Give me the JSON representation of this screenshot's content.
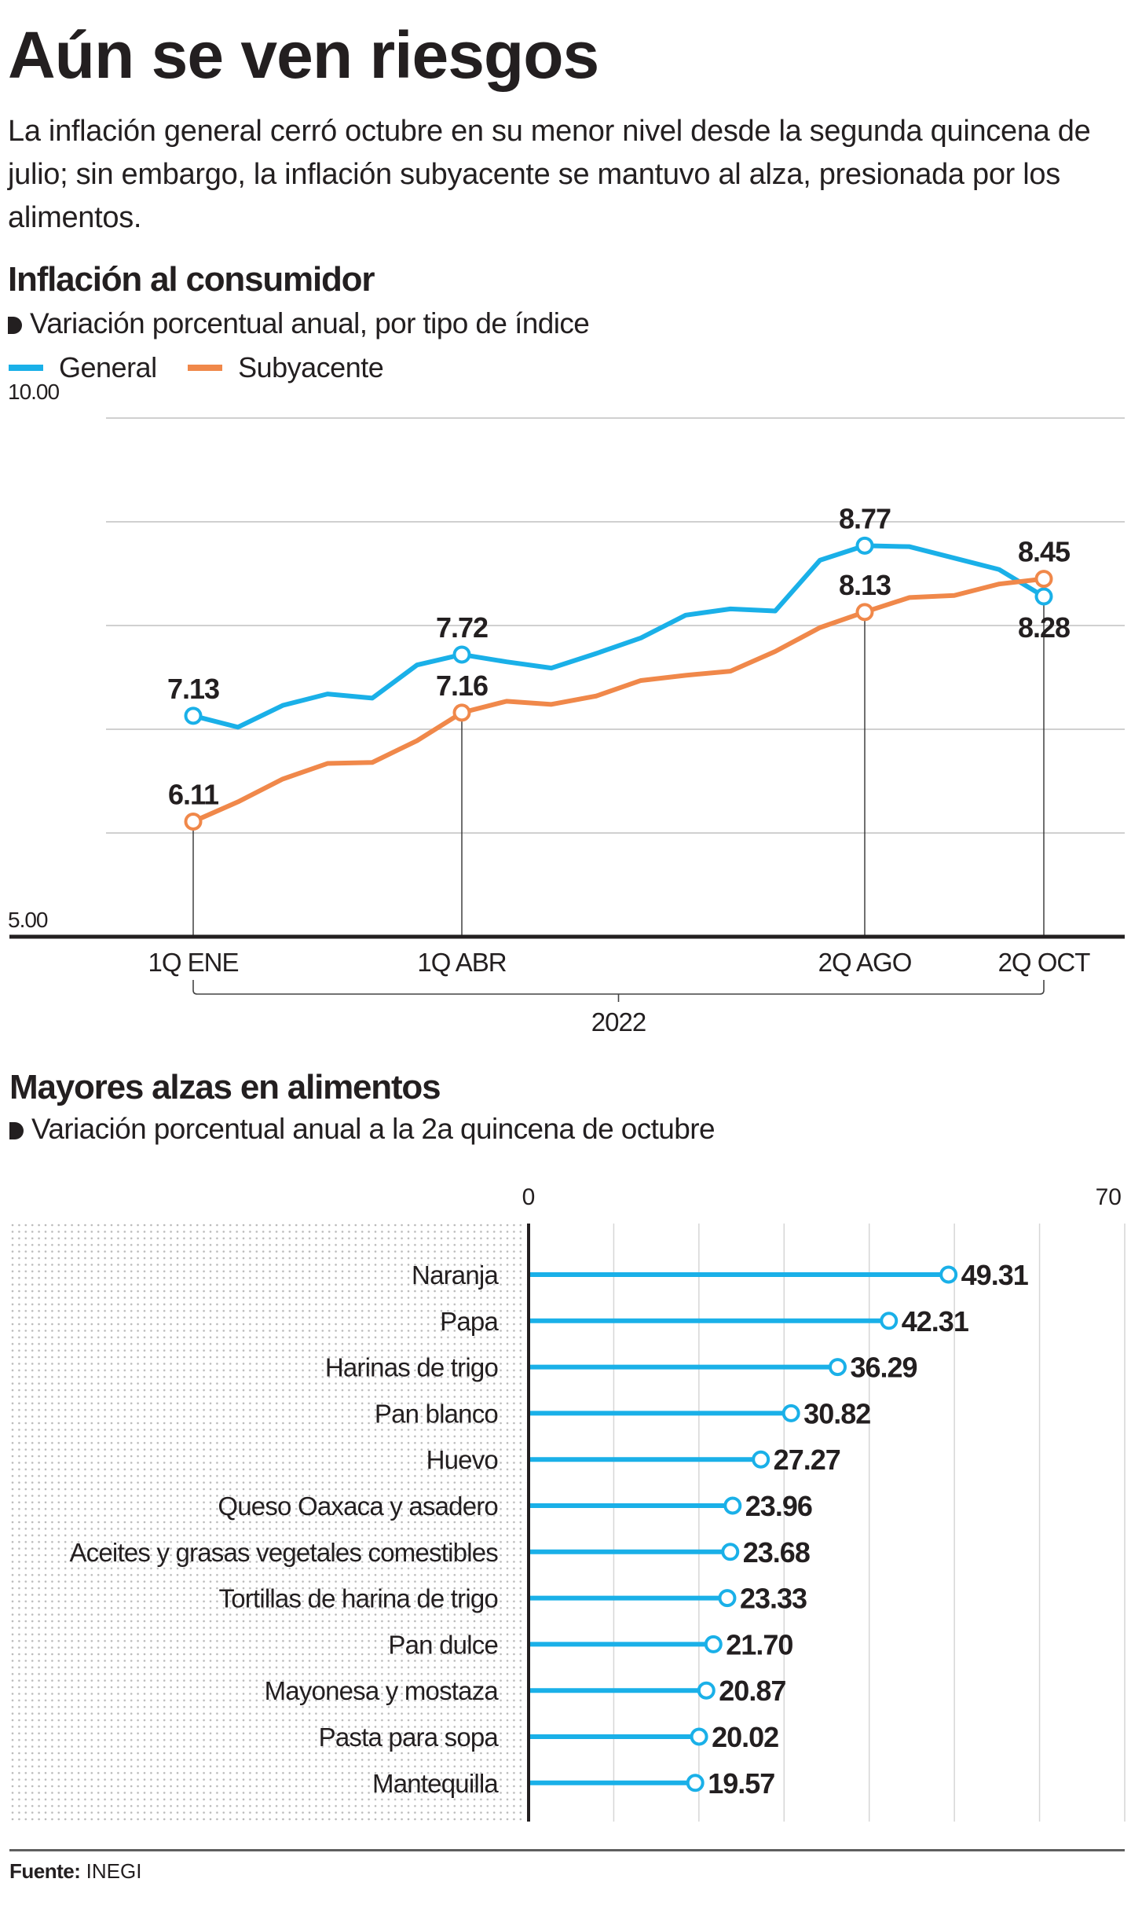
{
  "headline": "Aún se ven riesgos",
  "dek": "La inflación general cerró octubre en su menor nivel desde la segunda quincena de julio; sin embargo, la inflación subyacente se mantuvo al alza, presionada por los alimentos.",
  "colors": {
    "general": "#1ab0e8",
    "subyacente": "#f0884a",
    "text": "#231f20",
    "grid": "#d0d0d0",
    "axis": "#231f20"
  },
  "chart_data": [
    {
      "type": "line",
      "title": "Inflación al consumidor",
      "subtitle": "Variación porcentual anual, por tipo de índice",
      "xlabel": "2022",
      "ylabel": "",
      "ylim": [
        5,
        10
      ],
      "y_ticks": [
        5,
        6,
        7,
        8,
        9,
        10
      ],
      "y_tick_labels": [
        "5.00",
        "",
        "",
        "",
        "",
        "10.00"
      ],
      "grid": true,
      "legend": "top-left",
      "x": [
        "1Q ENE",
        "2Q ENE",
        "1Q FEB",
        "2Q FEB",
        "1Q MAR",
        "2Q MAR",
        "1Q ABR",
        "2Q ABR",
        "1Q MAY",
        "2Q MAY",
        "1Q JUN",
        "2Q JUN",
        "1Q JUL",
        "2Q JUL",
        "1Q AGO",
        "2Q AGO",
        "1Q SEP",
        "2Q SEP",
        "1Q OCT",
        "2Q OCT"
      ],
      "x_tick_labels": [
        {
          "index": 0,
          "label": "1Q ENE"
        },
        {
          "index": 6,
          "label": "1Q ABR"
        },
        {
          "index": 15,
          "label": "2Q AGO"
        },
        {
          "index": 19,
          "label": "2Q OCT"
        }
      ],
      "series": [
        {
          "name": "General",
          "color_key": "general",
          "values": [
            7.13,
            7.02,
            7.23,
            7.34,
            7.3,
            7.62,
            7.72,
            7.65,
            7.59,
            7.73,
            7.88,
            8.1,
            8.16,
            8.14,
            8.63,
            8.77,
            8.76,
            8.65,
            8.54,
            8.28
          ],
          "labeled_points": [
            {
              "index": 0,
              "label": "7.13",
              "position": "above"
            },
            {
              "index": 6,
              "label": "7.72",
              "position": "above"
            },
            {
              "index": 15,
              "label": "8.77",
              "position": "above"
            },
            {
              "index": 19,
              "label": "8.28",
              "position": "below"
            }
          ]
        },
        {
          "name": "Subyacente",
          "color_key": "subyacente",
          "values": [
            6.11,
            6.3,
            6.52,
            6.67,
            6.68,
            6.89,
            7.16,
            7.27,
            7.24,
            7.32,
            7.47,
            7.52,
            7.56,
            7.75,
            7.98,
            8.13,
            8.27,
            8.29,
            8.4,
            8.45
          ],
          "labeled_points": [
            {
              "index": 0,
              "label": "6.11",
              "position": "above"
            },
            {
              "index": 6,
              "label": "7.16",
              "position": "above"
            },
            {
              "index": 15,
              "label": "8.13",
              "position": "above"
            },
            {
              "index": 19,
              "label": "8.45",
              "position": "above"
            }
          ]
        }
      ]
    },
    {
      "type": "bar",
      "orientation": "horizontal",
      "style": "lollipop",
      "title": "Mayores alzas en alimentos",
      "subtitle": "Variación porcentual anual a la 2a quincena de octubre",
      "xlim": [
        0,
        70
      ],
      "x_tick_labels": [
        "0",
        "70"
      ],
      "grid": true,
      "categories": [
        "Naranja",
        "Papa",
        "Harinas de trigo",
        "Pan blanco",
        "Huevo",
        "Queso Oaxaca y asadero",
        "Aceites y grasas vegetales comestibles",
        "Tortillas de harina de trigo",
        "Pan dulce",
        "Mayonesa y mostaza",
        "Pasta para sopa",
        "Mantequilla"
      ],
      "values": [
        49.31,
        42.31,
        36.29,
        30.82,
        27.27,
        23.96,
        23.68,
        23.33,
        21.7,
        20.87,
        20.02,
        19.57
      ],
      "value_labels": [
        "49.31",
        "42.31",
        "36.29",
        "30.82",
        "27.27",
        "23.96",
        "23.68",
        "23.33",
        "21.70",
        "20.87",
        "20.02",
        "19.57"
      ]
    }
  ],
  "footer": {
    "source_label": "Fuente:",
    "source_value": "INEGI"
  }
}
